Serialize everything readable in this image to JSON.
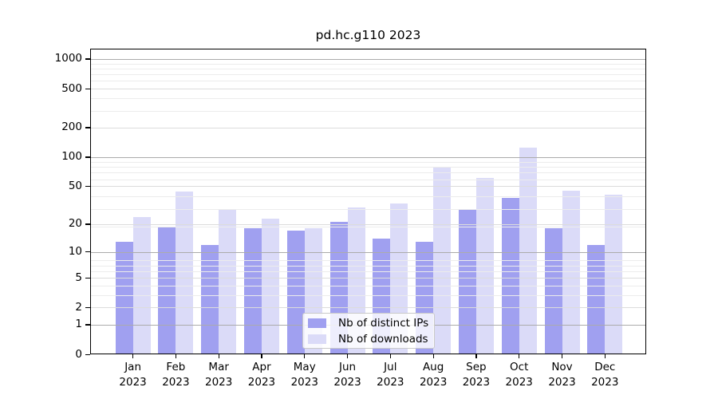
{
  "title": "pd.hc.g110 2023",
  "legend": {
    "items": [
      {
        "label": "Nb of distinct IPs",
        "color": "#a0a0f0"
      },
      {
        "label": "Nb of downloads",
        "color": "#dbdbf8"
      }
    ]
  },
  "chart_data": {
    "type": "bar",
    "title": "pd.hc.g110 2023",
    "categories": [
      "Jan",
      "Feb",
      "Mar",
      "Apr",
      "May",
      "Jun",
      "Jul",
      "Aug",
      "Sep",
      "Oct",
      "Nov",
      "Dec"
    ],
    "x_tick_year": "2023",
    "series": [
      {
        "name": "Nb of distinct IPs",
        "color": "#a0a0f0",
        "values": [
          13,
          19,
          12,
          18,
          17,
          21,
          14,
          13,
          29,
          38,
          18,
          12
        ]
      },
      {
        "name": "Nb of downloads",
        "color": "#dbdbf8",
        "values": [
          24,
          44,
          29,
          23,
          18,
          30,
          33,
          80,
          61,
          124,
          45,
          41
        ]
      }
    ],
    "yscale": "log(1+x)",
    "y_ticks": [
      0,
      1,
      2,
      5,
      10,
      20,
      50,
      100,
      200,
      500,
      1000
    ],
    "y_gridlines_major": [
      1,
      10,
      100,
      1000
    ],
    "y_gridlines_mid": [
      2,
      5,
      20,
      50,
      200,
      500
    ],
    "ylim": [
      0,
      1280
    ],
    "grid": true,
    "legend_position": "inside lower-center",
    "bar_orientation": "vertical grouped pairs"
  }
}
